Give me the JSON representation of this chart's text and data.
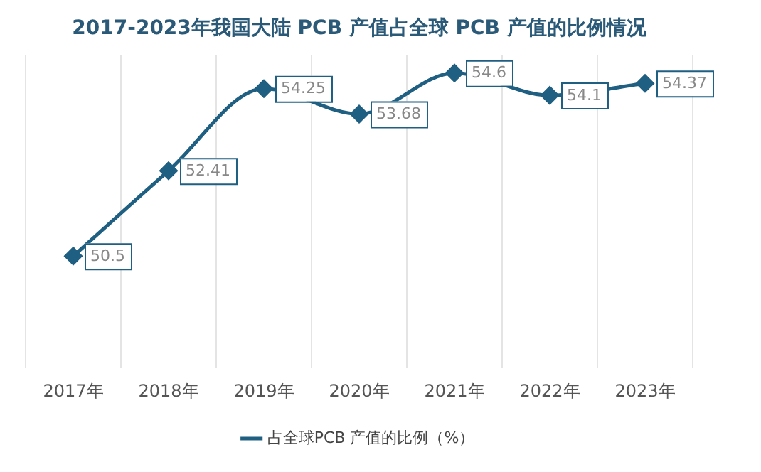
{
  "chart_data": {
    "type": "line",
    "title": "2017-2023年我国大陆 PCB 产值占全球 PCB 产值的比例情况",
    "categories": [
      "2017年",
      "2018年",
      "2019年",
      "2020年",
      "2021年",
      "2022年",
      "2023年"
    ],
    "series": [
      {
        "name": "占全球PCB 产值的比例（%）",
        "color": "#1f5f82",
        "values": [
          50.5,
          52.41,
          54.25,
          53.68,
          54.6,
          54.1,
          54.37
        ]
      }
    ],
    "ylim": [
      48,
      55
    ],
    "tick_labels": "x",
    "grid": "x",
    "legend": "bottom",
    "marker": "diamond",
    "line_style": "solid",
    "data_labels": true
  }
}
